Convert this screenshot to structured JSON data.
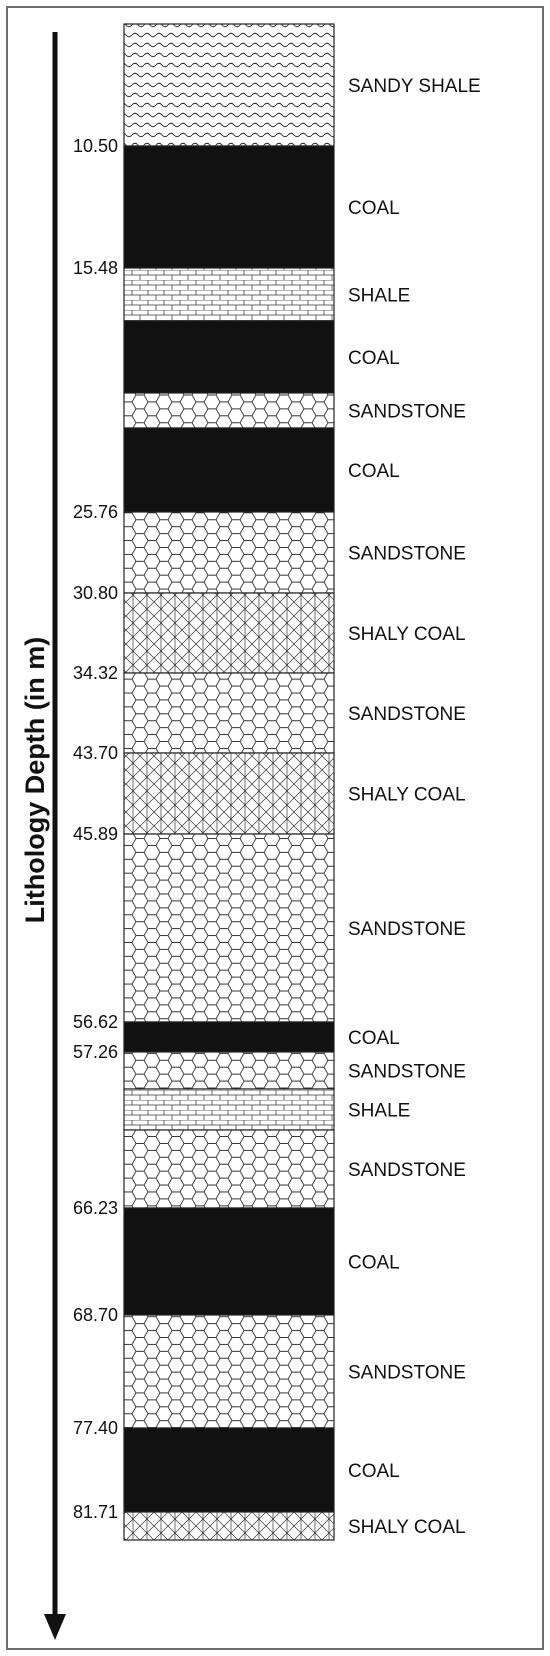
{
  "axis_title": "Lithology Depth (in m)",
  "colors": {
    "coal": "#111111",
    "line": "#222222",
    "frame": "#6e6e6e",
    "background": "#ffffff"
  },
  "chart_data": {
    "type": "lithology-column",
    "axis_label": "Lithology Depth (in m)",
    "layers": [
      {
        "lithology": "SANDY SHALE",
        "pattern": "wave",
        "top_depth": "",
        "base_depth": "10.50"
      },
      {
        "lithology": "COAL",
        "pattern": "solid",
        "top_depth": "10.50",
        "base_depth": "15.48"
      },
      {
        "lithology": "SHALE",
        "pattern": "brick",
        "top_depth": "15.48",
        "base_depth": ""
      },
      {
        "lithology": "COAL",
        "pattern": "solid",
        "top_depth": "",
        "base_depth": ""
      },
      {
        "lithology": "SANDSTONE",
        "pattern": "hexagon",
        "top_depth": "",
        "base_depth": ""
      },
      {
        "lithology": "COAL",
        "pattern": "solid",
        "top_depth": "",
        "base_depth": "25.76"
      },
      {
        "lithology": "SANDSTONE",
        "pattern": "hexagon",
        "top_depth": "25.76",
        "base_depth": "30.80"
      },
      {
        "lithology": "SHALY COAL",
        "pattern": "crosshatch",
        "top_depth": "30.80",
        "base_depth": "34.32"
      },
      {
        "lithology": "SANDSTONE",
        "pattern": "hexagon",
        "top_depth": "34.32",
        "base_depth": "43.70"
      },
      {
        "lithology": "SHALY COAL",
        "pattern": "crosshatch",
        "top_depth": "43.70",
        "base_depth": "45.89"
      },
      {
        "lithology": "SANDSTONE",
        "pattern": "hexagon",
        "top_depth": "45.89",
        "base_depth": "56.62"
      },
      {
        "lithology": "COAL",
        "pattern": "solid",
        "top_depth": "56.62",
        "base_depth": "57.26"
      },
      {
        "lithology": "SANDSTONE",
        "pattern": "hexagon",
        "top_depth": "57.26",
        "base_depth": ""
      },
      {
        "lithology": "SHALE",
        "pattern": "brick",
        "top_depth": "",
        "base_depth": ""
      },
      {
        "lithology": "SANDSTONE",
        "pattern": "hexagon",
        "top_depth": "",
        "base_depth": "66.23"
      },
      {
        "lithology": "COAL",
        "pattern": "solid",
        "top_depth": "66.23",
        "base_depth": "68.70"
      },
      {
        "lithology": "SANDSTONE",
        "pattern": "hexagon",
        "top_depth": "68.70",
        "base_depth": "77.40"
      },
      {
        "lithology": "COAL",
        "pattern": "solid",
        "top_depth": "77.40",
        "base_depth": "81.71"
      },
      {
        "lithology": "SHALY COAL",
        "pattern": "crosshatch",
        "top_depth": "81.71",
        "base_depth": ""
      }
    ],
    "depth_ticks": [
      "10.50",
      "15.48",
      "25.76",
      "30.80",
      "34.32",
      "43.70",
      "45.89",
      "56.62",
      "57.26",
      "66.23",
      "68.70",
      "77.40",
      "81.71"
    ]
  }
}
